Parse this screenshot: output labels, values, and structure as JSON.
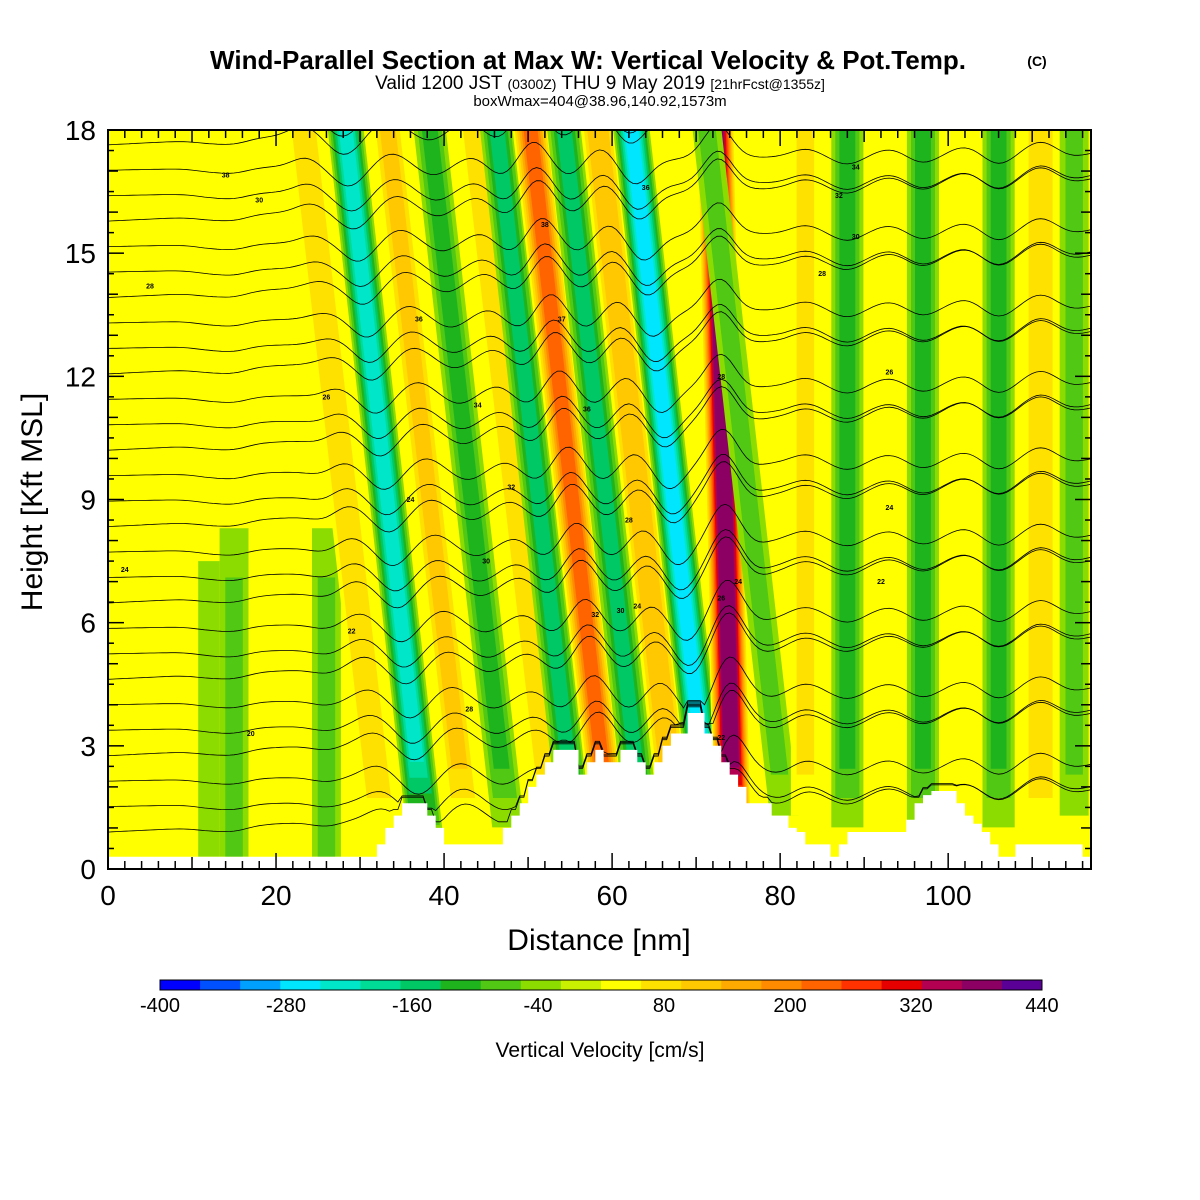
{
  "header": {
    "title": "Wind-Parallel Section at Max W: Vertical Velocity & Pot.Temp.",
    "copyright": "(C)",
    "valid_prefix": "Valid 1200 JST",
    "valid_utc": "(0300Z)",
    "valid_date": "THU 9 May 2019",
    "forecast_tag": "[21hrFcst@1355z]",
    "subtitle": "boxWmax=404@38.96,140.92,1573m"
  },
  "chart_data": {
    "type": "heatmap",
    "xlabel": "Distance [nm]",
    "ylabel": "Height [Kft MSL]",
    "xlim": [
      0,
      117
    ],
    "ylim": [
      0,
      18
    ],
    "x_ticks": [
      0,
      20,
      40,
      60,
      80,
      100
    ],
    "y_ticks": [
      0,
      3,
      6,
      9,
      12,
      15,
      18
    ],
    "colorbar": {
      "title": "Vertical Velocity [cm/s]",
      "min": -400,
      "max": 440,
      "step": 40,
      "tick_labels": [
        "-400",
        "-280",
        "-160",
        "-40",
        "80",
        "200",
        "320",
        "440"
      ],
      "colors": [
        "#0000ff",
        "#0050ff",
        "#00a0ff",
        "#00e6ff",
        "#00e6c8",
        "#00dc96",
        "#00c864",
        "#1eb41e",
        "#50c814",
        "#8cdc00",
        "#c8f000",
        "#ffff00",
        "#ffe100",
        "#ffc800",
        "#ffaa00",
        "#ff8c00",
        "#ff6400",
        "#ff3200",
        "#e60000",
        "#b40050",
        "#8c0064",
        "#5a0096"
      ]
    },
    "vertical_velocity_bands": [
      {
        "x": 12,
        "w": -30,
        "kind": "plume"
      },
      {
        "x": 15,
        "w": -50,
        "kind": "plume"
      },
      {
        "x": 26,
        "w": -50,
        "kind": "plume"
      },
      {
        "x": 31,
        "w": 110,
        "kind": "tilted"
      },
      {
        "x": 36,
        "w": -210,
        "kind": "tilted"
      },
      {
        "x": 41,
        "w": 120,
        "kind": "tilted"
      },
      {
        "x": 46,
        "w": -120,
        "kind": "tilted"
      },
      {
        "x": 51,
        "w": 80,
        "kind": "tilted"
      },
      {
        "x": 54,
        "w": -150,
        "kind": "tilted"
      },
      {
        "x": 58,
        "w": 240,
        "kind": "tilted"
      },
      {
        "x": 62,
        "w": -160,
        "kind": "tilted"
      },
      {
        "x": 66,
        "w": 150,
        "kind": "tilted"
      },
      {
        "x": 70,
        "w": -270,
        "kind": "tilted"
      },
      {
        "x": 74,
        "w": 404,
        "kind": "steep"
      },
      {
        "x": 79,
        "w": -60,
        "kind": "tilted"
      },
      {
        "x": 83,
        "w": 80,
        "kind": "upright"
      },
      {
        "x": 88,
        "w": -90,
        "kind": "upright"
      },
      {
        "x": 93,
        "w": 60,
        "kind": "upright"
      },
      {
        "x": 97,
        "w": -90,
        "kind": "upright"
      },
      {
        "x": 102,
        "w": 70,
        "kind": "upright"
      },
      {
        "x": 106,
        "w": -120,
        "kind": "upright"
      },
      {
        "x": 111,
        "w": 110,
        "kind": "upright"
      },
      {
        "x": 115,
        "w": -50,
        "kind": "upright"
      }
    ],
    "terrain": {
      "x": [
        0,
        31,
        32,
        33,
        34,
        35,
        38,
        39,
        40,
        41,
        45,
        47,
        48,
        49,
        50,
        51,
        52,
        53,
        54,
        56,
        57,
        58,
        59,
        61,
        63,
        64,
        65,
        66,
        67,
        69,
        71,
        72,
        73,
        74,
        75,
        76,
        79,
        81,
        82,
        83,
        86,
        87,
        88,
        93,
        94,
        95,
        96,
        97,
        98,
        101,
        102,
        103,
        104,
        105,
        106,
        107,
        108,
        110,
        111,
        114,
        116,
        117
      ],
      "height_kft": [
        0.3,
        0.3,
        0.6,
        1.0,
        1.3,
        1.6,
        1.3,
        1.0,
        0.6,
        0.6,
        0.6,
        1.0,
        1.3,
        1.6,
        2.0,
        2.3,
        2.6,
        2.9,
        2.9,
        2.3,
        2.6,
        2.9,
        2.6,
        2.9,
        2.6,
        2.3,
        2.6,
        3.0,
        3.3,
        3.8,
        3.3,
        3.0,
        2.6,
        2.3,
        2.0,
        1.6,
        1.3,
        1.0,
        0.9,
        0.6,
        0.3,
        0.6,
        0.9,
        0.9,
        0.9,
        1.2,
        1.6,
        1.8,
        1.9,
        1.6,
        1.3,
        1.1,
        0.9,
        0.6,
        0.3,
        0.3,
        0.6,
        0.6,
        0.6,
        0.6,
        0.3,
        0.3
      ]
    },
    "theta_contour_labels": [
      "38",
      "30",
      "28",
      "26",
      "24",
      "22",
      "20",
      "36",
      "34",
      "32"
    ],
    "contour_labels_shown": [
      {
        "x": 14,
        "y": 16.9,
        "text": "38"
      },
      {
        "x": 18,
        "y": 16.3,
        "text": "30"
      },
      {
        "x": 5,
        "y": 14.2,
        "text": "28"
      },
      {
        "x": 26,
        "y": 11.5,
        "text": "26"
      },
      {
        "x": 2,
        "y": 7.3,
        "text": "24"
      },
      {
        "x": 29,
        "y": 5.8,
        "text": "22"
      },
      {
        "x": 17,
        "y": 3.3,
        "text": "20"
      },
      {
        "x": 37,
        "y": 13.4,
        "text": "36"
      },
      {
        "x": 44,
        "y": 11.3,
        "text": "34"
      },
      {
        "x": 48,
        "y": 9.3,
        "text": "32"
      },
      {
        "x": 45,
        "y": 7.5,
        "text": "30"
      },
      {
        "x": 43,
        "y": 3.9,
        "text": "28"
      },
      {
        "x": 36,
        "y": 9.0,
        "text": "24"
      },
      {
        "x": 52,
        "y": 15.7,
        "text": "38"
      },
      {
        "x": 54,
        "y": 13.4,
        "text": "37"
      },
      {
        "x": 57,
        "y": 11.2,
        "text": "36"
      },
      {
        "x": 58,
        "y": 6.2,
        "text": "32"
      },
      {
        "x": 61,
        "y": 6.3,
        "text": "30"
      },
      {
        "x": 62,
        "y": 8.5,
        "text": "28"
      },
      {
        "x": 63,
        "y": 6.4,
        "text": "24"
      },
      {
        "x": 64,
        "y": 16.6,
        "text": "36"
      },
      {
        "x": 73,
        "y": 12.0,
        "text": "28"
      },
      {
        "x": 73,
        "y": 6.6,
        "text": "26"
      },
      {
        "x": 75,
        "y": 7.0,
        "text": "24"
      },
      {
        "x": 73,
        "y": 3.2,
        "text": "22"
      },
      {
        "x": 89,
        "y": 17.1,
        "text": "34"
      },
      {
        "x": 87,
        "y": 16.4,
        "text": "32"
      },
      {
        "x": 89,
        "y": 15.4,
        "text": "30"
      },
      {
        "x": 85,
        "y": 14.5,
        "text": "28"
      },
      {
        "x": 93,
        "y": 12.1,
        "text": "26"
      },
      {
        "x": 93,
        "y": 8.8,
        "text": "24"
      },
      {
        "x": 92,
        "y": 7.0,
        "text": "22"
      }
    ]
  }
}
